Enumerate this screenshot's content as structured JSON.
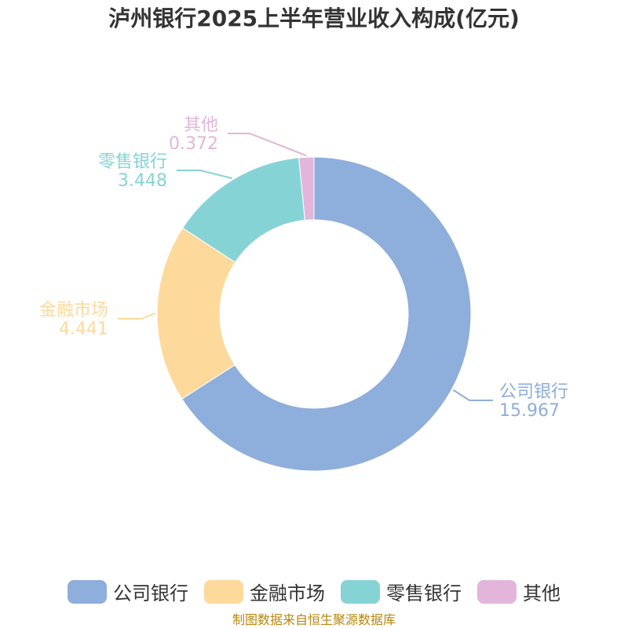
{
  "title": "泸州银行2025上半年营业收入构成(亿元)",
  "source": "制图数据来自恒生聚源数据库",
  "chart_data": {
    "type": "pie",
    "donut": true,
    "title": "泸州银行2025上半年营业收入构成(亿元)",
    "categories": [
      "公司银行",
      "金融市场",
      "零售银行",
      "其他"
    ],
    "values": [
      15.967,
      4.441,
      3.448,
      0.372
    ],
    "value_labels": [
      "15.967",
      "4.441",
      "3.448",
      "0.372"
    ],
    "colors": [
      "#8eaedb",
      "#fdd99b",
      "#86d3d6",
      "#e3b5da"
    ],
    "legend_position": "bottom"
  }
}
